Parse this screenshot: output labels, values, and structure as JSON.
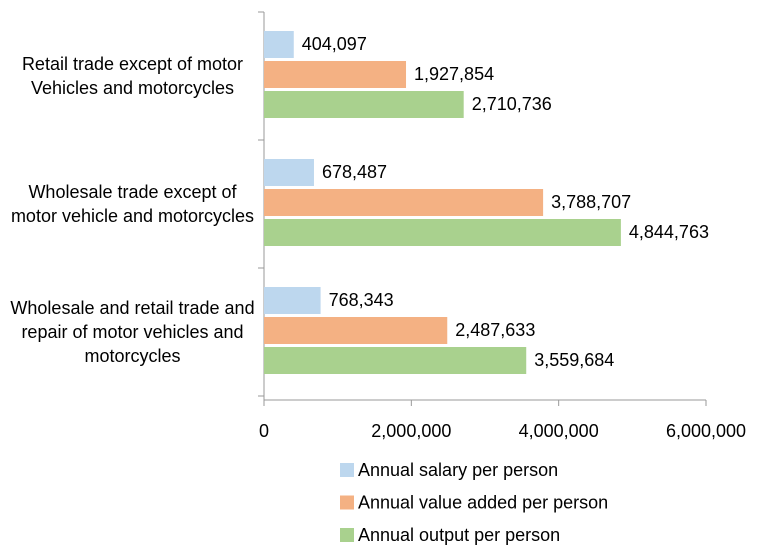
{
  "chart_data": {
    "type": "barh",
    "categories": [
      "Retail trade except of motor Vehicles and motorcycles",
      "Wholesale trade except of motor vehicle and motorcycles",
      "Wholesale and retail trade and repair of motor vehicles and motorcycles"
    ],
    "series": [
      {
        "name": "Annual salary per person",
        "color": "#bdd7ee",
        "values": [
          404097,
          678487,
          768343
        ],
        "value_labels": [
          "404,097",
          "678,487",
          "768,343"
        ]
      },
      {
        "name": "Annual value added per person",
        "color": "#f4b183",
        "values": [
          1927854,
          3788707,
          2487633
        ],
        "value_labels": [
          "1,927,854",
          "3,788,707",
          "2,487,633"
        ]
      },
      {
        "name": "Annual output per person",
        "color": "#a9d18e",
        "values": [
          2710736,
          4844763,
          3559684
        ],
        "value_labels": [
          "2,710,736",
          "4,844,763",
          "3,559,684"
        ]
      }
    ],
    "xlim": [
      0,
      6000000
    ],
    "xticks": [
      0,
      {
        "value": 2000000,
        "label": "2,000,000"
      },
      {
        "value": 4000000,
        "label": "4,000,000"
      },
      {
        "value": 6000000,
        "label": "6,000,000"
      }
    ],
    "legend": "bottom"
  }
}
